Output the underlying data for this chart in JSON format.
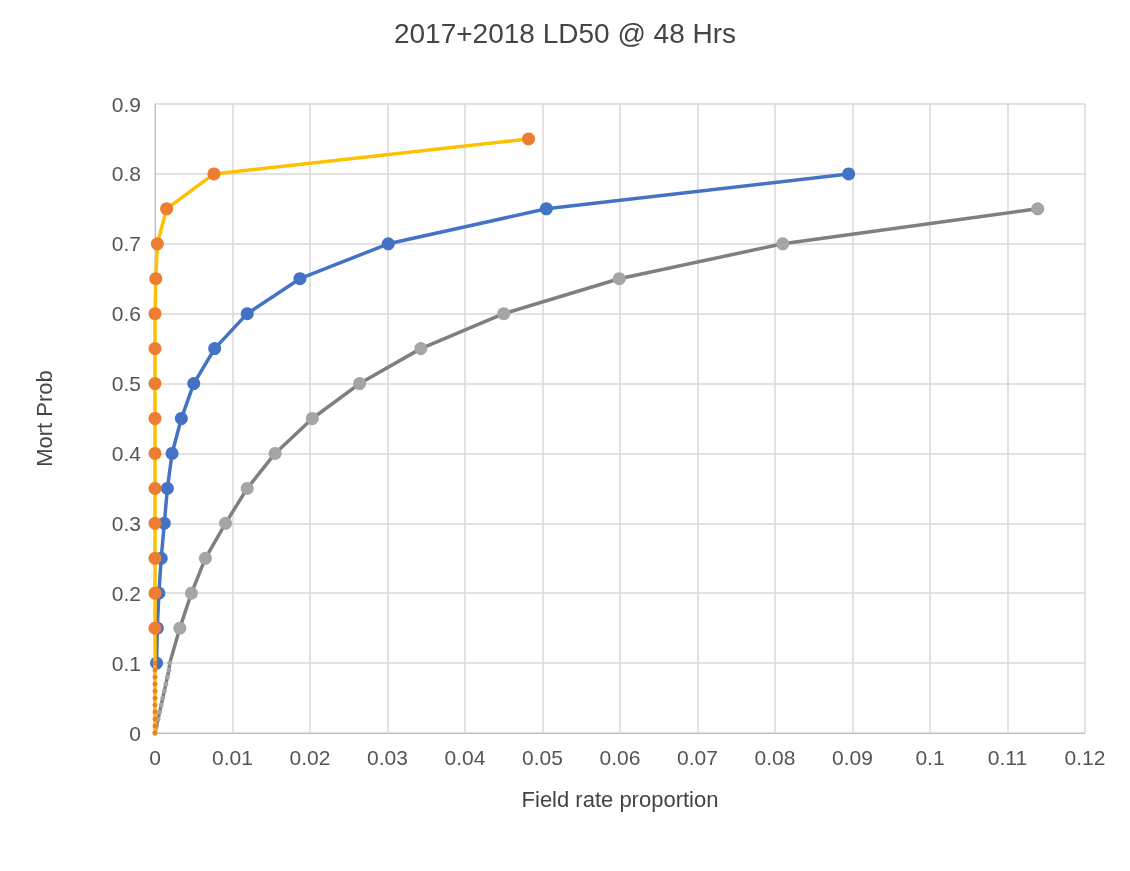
{
  "chart_data": {
    "type": "line",
    "title": "2017+2018 LD50 @ 48 Hrs",
    "xlabel": "Field rate proportion",
    "ylabel": "Mort Prob",
    "xlim": [
      0,
      0.12
    ],
    "xticks": [
      0,
      0.01,
      0.02,
      0.03,
      0.04,
      0.05,
      0.06,
      0.07,
      0.08,
      0.09,
      0.1,
      0.11,
      0.12
    ],
    "ylim": [
      0,
      0.9
    ],
    "yticks": [
      0,
      0.1,
      0.2,
      0.3,
      0.4,
      0.5,
      0.6,
      0.7,
      0.8,
      0.9
    ],
    "grid": true,
    "marker": "circle",
    "line_style": "solid",
    "series": [
      {
        "color": "#ffc000",
        "colors": [
          "#ed7d31",
          "#ed7d31",
          "#ed7d31",
          "#ed7d31",
          "#ed7d31",
          "#ed7d31",
          "#ed7d31",
          "#ed7d31",
          "#ed7d31",
          "#ed7d31",
          "#ed7d31",
          "#ed7d31",
          "#ed7d31",
          "#ed7d31",
          "#ed7d31",
          "#ed7d31",
          "#ed7d31",
          "#ed7d31",
          "#ed7d31",
          "#ed7d31",
          "#ed7d31",
          "#ed7d31",
          "#ed7d31",
          "#ed7d31",
          "#ed7d31",
          "#ed7d31"
        ],
        "x": [
          0,
          0,
          0,
          0,
          0,
          0,
          0,
          0,
          0,
          0,
          0,
          0,
          0,
          0,
          0,
          0,
          0,
          0,
          0,
          0,
          0,
          0.0001,
          0.0003,
          0.0015,
          0.0076,
          0.0482
        ],
        "values": [
          0,
          0.01,
          0.02,
          0.03,
          0.04,
          0.05,
          0.06,
          0.07,
          0.08,
          0.09,
          0.1,
          0.15,
          0.2,
          0.25,
          0.3,
          0.35,
          0.4,
          0.45,
          0.5,
          0.55,
          0.6,
          0.65,
          0.7,
          0.75,
          0.8,
          0.85
        ]
      },
      {
        "color": "#4472c4",
        "colors": [
          "#4472c4",
          "#4472c4",
          "#4472c4",
          "#4472c4",
          "#4472c4",
          "#4472c4",
          "#4472c4",
          "#4472c4",
          "#4472c4",
          "#4472c4",
          "#4472c4",
          "#4472c4",
          "#4472c4",
          "#4472c4",
          "#4472c4"
        ],
        "x": [
          0.0002,
          0.0003,
          0.0005,
          0.0008,
          0.0012,
          0.0016,
          0.0022,
          0.0034,
          0.005,
          0.0077,
          0.0119,
          0.0187,
          0.0301,
          0.0505,
          0.0895
        ],
        "values": [
          0.1,
          0.15,
          0.2,
          0.25,
          0.3,
          0.35,
          0.4,
          0.45,
          0.5,
          0.55,
          0.6,
          0.65,
          0.7,
          0.75,
          0.8
        ]
      },
      {
        "color": "#7f7f7f",
        "colors": [
          "#a5a5a5",
          "#a5a5a5",
          "#a5a5a5",
          "#a5a5a5",
          "#a5a5a5",
          "#a5a5a5",
          "#a5a5a5",
          "#a5a5a5",
          "#a5a5a5",
          "#a5a5a5",
          "#a5a5a5",
          "#a5a5a5",
          "#a5a5a5",
          "#a5a5a5",
          "#a5a5a5",
          "#a5a5a5",
          "#a5a5a5",
          "#a5a5a5",
          "#a5a5a5",
          "#a5a5a5",
          "#a5a5a5",
          "#a5a5a5",
          "#a5a5a5",
          "#a5a5a5"
        ],
        "x": [
          0,
          0.0002,
          0.0004,
          0.0006,
          0.0008,
          0.001,
          0.0012,
          0.0014,
          0.0016,
          0.0018,
          0.0019,
          0.0032,
          0.0047,
          0.0065,
          0.0091,
          0.0119,
          0.0155,
          0.0203,
          0.0264,
          0.0343,
          0.045,
          0.0599,
          0.081,
          0.1139
        ],
        "values": [
          0,
          0.01,
          0.02,
          0.03,
          0.04,
          0.05,
          0.06,
          0.07,
          0.08,
          0.09,
          0.1,
          0.15,
          0.2,
          0.25,
          0.3,
          0.35,
          0.4,
          0.45,
          0.5,
          0.55,
          0.6,
          0.65,
          0.7,
          0.75
        ]
      }
    ]
  }
}
